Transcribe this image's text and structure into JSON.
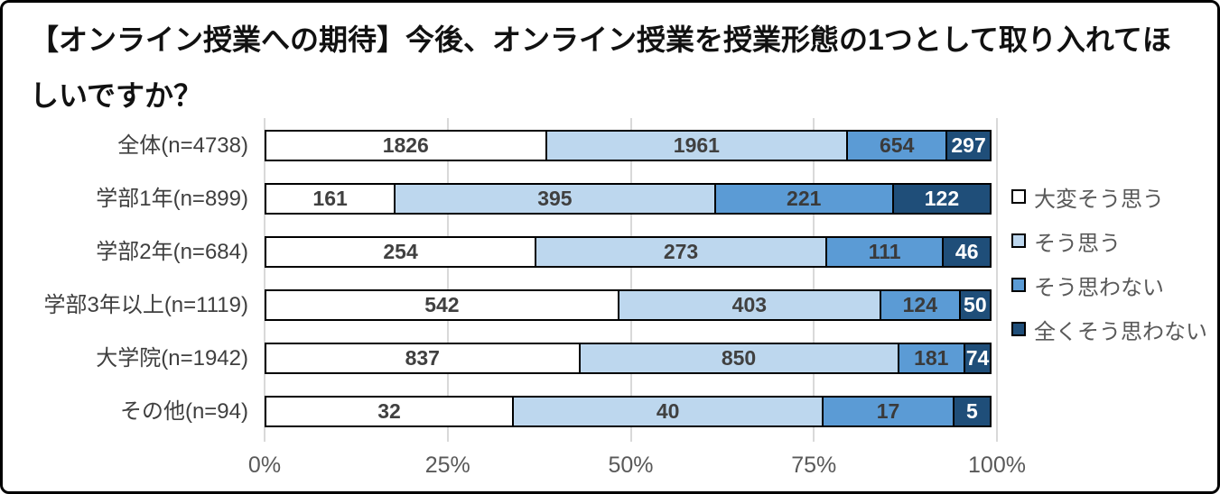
{
  "title": "【オンライン授業への期待】今後、オンライン授業を授業形態の1つとして取り入れてほしいですか？",
  "colors": {
    "background": "#ffffff",
    "frame_border": "#000000",
    "gridline": "#d9d9d9",
    "title_text": "#111111",
    "category_text": "#3f3f3f",
    "tick_text": "#595959",
    "legend_text": "#595959",
    "bar_border": "#000000"
  },
  "chart_data": {
    "type": "bar",
    "stacked": true,
    "orientation": "horizontal",
    "normalized_to_100_percent": true,
    "title": "【オンライン授業への期待】今後、オンライン授業を授業形態の1つとして取り入れてほしいですか？",
    "categories": [
      "全体(n=4738)",
      "学部1年(n=899)",
      "学部2年(n=684)",
      "学部3年以上(n=1119)",
      "大学院(n=1942)",
      "その他(n=94)"
    ],
    "series": [
      {
        "name": "大変そう思う",
        "color": "#ffffff",
        "label_color": "#404040",
        "values": [
          1826,
          161,
          254,
          542,
          837,
          32
        ]
      },
      {
        "name": "そう思う",
        "color": "#bdd7ee",
        "label_color": "#404040",
        "values": [
          1961,
          395,
          273,
          403,
          850,
          40
        ]
      },
      {
        "name": "そう思わない",
        "color": "#5b9bd5",
        "label_color": "#3a3a3a",
        "values": [
          654,
          221,
          111,
          124,
          181,
          17
        ]
      },
      {
        "name": "全くそう思わない",
        "color": "#1f4e79",
        "label_color": "#ffffff",
        "values": [
          297,
          122,
          46,
          50,
          74,
          5
        ]
      }
    ],
    "x_ticks": [
      "0%",
      "25%",
      "50%",
      "75%",
      "100%"
    ],
    "xlim": [
      0,
      100
    ],
    "grid": true,
    "legend_position": "right"
  }
}
